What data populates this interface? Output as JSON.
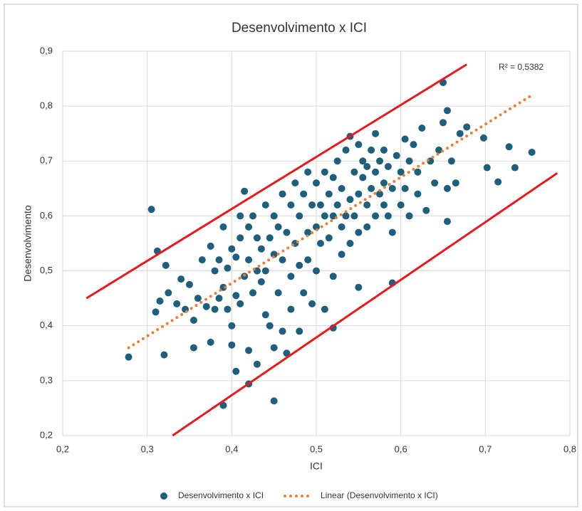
{
  "chart_data": {
    "type": "scatter",
    "title": "Desenvolvimento x ICI",
    "x_label": "ICI",
    "y_label": "Desenvolvimento",
    "annotation": "R² = 0,5382",
    "xlim": [
      0.2,
      0.8
    ],
    "ylim": [
      0.2,
      0.9
    ],
    "xticks": [
      {
        "value": 0.2,
        "label": "0,2"
      },
      {
        "value": 0.3,
        "label": "0,3"
      },
      {
        "value": 0.4,
        "label": "0,4"
      },
      {
        "value": 0.5,
        "label": "0,5"
      },
      {
        "value": 0.6,
        "label": "0,6"
      },
      {
        "value": 0.7,
        "label": "0,7"
      },
      {
        "value": 0.8,
        "label": "0,8"
      }
    ],
    "yticks": [
      {
        "value": 0.2,
        "label": "0,2"
      },
      {
        "value": 0.3,
        "label": "0,3"
      },
      {
        "value": 0.4,
        "label": "0,4"
      },
      {
        "value": 0.5,
        "label": "0,5"
      },
      {
        "value": 0.6,
        "label": "0,6"
      },
      {
        "value": 0.7,
        "label": "0,7"
      },
      {
        "value": 0.8,
        "label": "0,8"
      },
      {
        "value": 0.9,
        "label": "0,9"
      }
    ],
    "grid": true,
    "legend": "bottom",
    "series": [
      {
        "name": "Desenvolvimento x ICI",
        "color": "#1d5f7c",
        "x": [
          0.31,
          0.315,
          0.325,
          0.335,
          0.34,
          0.345,
          0.35,
          0.355,
          0.355,
          0.36,
          0.365,
          0.37,
          0.375,
          0.375,
          0.38,
          0.38,
          0.385,
          0.385,
          0.39,
          0.39,
          0.395,
          0.395,
          0.4,
          0.4,
          0.4,
          0.405,
          0.405,
          0.41,
          0.41,
          0.41,
          0.415,
          0.415,
          0.42,
          0.42,
          0.42,
          0.425,
          0.425,
          0.43,
          0.43,
          0.43,
          0.435,
          0.435,
          0.44,
          0.44,
          0.44,
          0.445,
          0.445,
          0.45,
          0.45,
          0.45,
          0.455,
          0.455,
          0.46,
          0.46,
          0.46,
          0.465,
          0.465,
          0.47,
          0.47,
          0.47,
          0.475,
          0.475,
          0.48,
          0.48,
          0.48,
          0.485,
          0.485,
          0.49,
          0.49,
          0.49,
          0.495,
          0.495,
          0.5,
          0.5,
          0.5,
          0.505,
          0.505,
          0.51,
          0.51,
          0.51,
          0.515,
          0.515,
          0.52,
          0.52,
          0.52,
          0.525,
          0.525,
          0.53,
          0.53,
          0.53,
          0.535,
          0.535,
          0.54,
          0.54,
          0.54,
          0.545,
          0.545,
          0.55,
          0.55,
          0.55,
          0.555,
          0.555,
          0.56,
          0.56,
          0.56,
          0.565,
          0.565,
          0.57,
          0.57,
          0.57,
          0.575,
          0.575,
          0.58,
          0.58,
          0.58,
          0.585,
          0.585,
          0.59,
          0.59,
          0.595,
          0.6,
          0.6,
          0.605,
          0.605,
          0.61,
          0.61,
          0.615,
          0.62,
          0.62,
          0.625,
          0.63,
          0.635,
          0.64,
          0.645,
          0.65,
          0.655,
          0.66,
          0.665,
          0.67,
          0.655,
          0.278,
          0.305,
          0.312,
          0.32,
          0.322,
          0.39,
          0.45,
          0.42,
          0.65,
          0.655,
          0.755,
          0.735,
          0.728,
          0.715,
          0.702,
          0.698,
          0.678,
          0.59,
          0.55,
          0.52,
          0.405
        ],
        "values": [
          0.425,
          0.445,
          0.46,
          0.44,
          0.485,
          0.43,
          0.475,
          0.41,
          0.36,
          0.45,
          0.52,
          0.435,
          0.545,
          0.37,
          0.43,
          0.5,
          0.45,
          0.52,
          0.58,
          0.47,
          0.43,
          0.505,
          0.4,
          0.54,
          0.365,
          0.455,
          0.525,
          0.56,
          0.44,
          0.6,
          0.49,
          0.645,
          0.355,
          0.52,
          0.58,
          0.46,
          0.6,
          0.33,
          0.5,
          0.56,
          0.48,
          0.54,
          0.42,
          0.62,
          0.5,
          0.4,
          0.56,
          0.36,
          0.53,
          0.6,
          0.46,
          0.58,
          0.39,
          0.64,
          0.52,
          0.35,
          0.57,
          0.49,
          0.62,
          0.43,
          0.55,
          0.66,
          0.39,
          0.6,
          0.51,
          0.64,
          0.46,
          0.57,
          0.68,
          0.52,
          0.62,
          0.44,
          0.58,
          0.66,
          0.5,
          0.62,
          0.55,
          0.43,
          0.68,
          0.6,
          0.64,
          0.56,
          0.67,
          0.49,
          0.6,
          0.7,
          0.62,
          0.53,
          0.65,
          0.58,
          0.72,
          0.6,
          0.745,
          0.63,
          0.55,
          0.68,
          0.6,
          0.73,
          0.64,
          0.57,
          0.67,
          0.7,
          0.62,
          0.58,
          0.69,
          0.65,
          0.72,
          0.6,
          0.68,
          0.75,
          0.64,
          0.7,
          0.66,
          0.62,
          0.72,
          0.6,
          0.69,
          0.57,
          0.65,
          0.71,
          0.62,
          0.68,
          0.74,
          0.65,
          0.7,
          0.6,
          0.73,
          0.64,
          0.68,
          0.76,
          0.61,
          0.7,
          0.66,
          0.72,
          0.77,
          0.65,
          0.7,
          0.66,
          0.75,
          0.59,
          0.343,
          0.612,
          0.536,
          0.347,
          0.51,
          0.255,
          0.263,
          0.294,
          0.843,
          0.792,
          0.716,
          0.688,
          0.726,
          0.662,
          0.688,
          0.742,
          0.762,
          0.478,
          0.47,
          0.396,
          0.317
        ]
      }
    ],
    "trendline": {
      "name": "Linear (Desenvolvimento x ICI)",
      "color": "#ed7d31",
      "x": [
        0.278,
        0.755
      ],
      "values": [
        0.36,
        0.82
      ]
    },
    "bounds": [
      {
        "color": "#e8191b",
        "x": [
          0.228,
          0.678
        ],
        "values": [
          0.45,
          0.876
        ]
      },
      {
        "color": "#e8191b",
        "x": [
          0.33,
          0.785
        ],
        "values": [
          0.2,
          0.678
        ]
      }
    ]
  }
}
